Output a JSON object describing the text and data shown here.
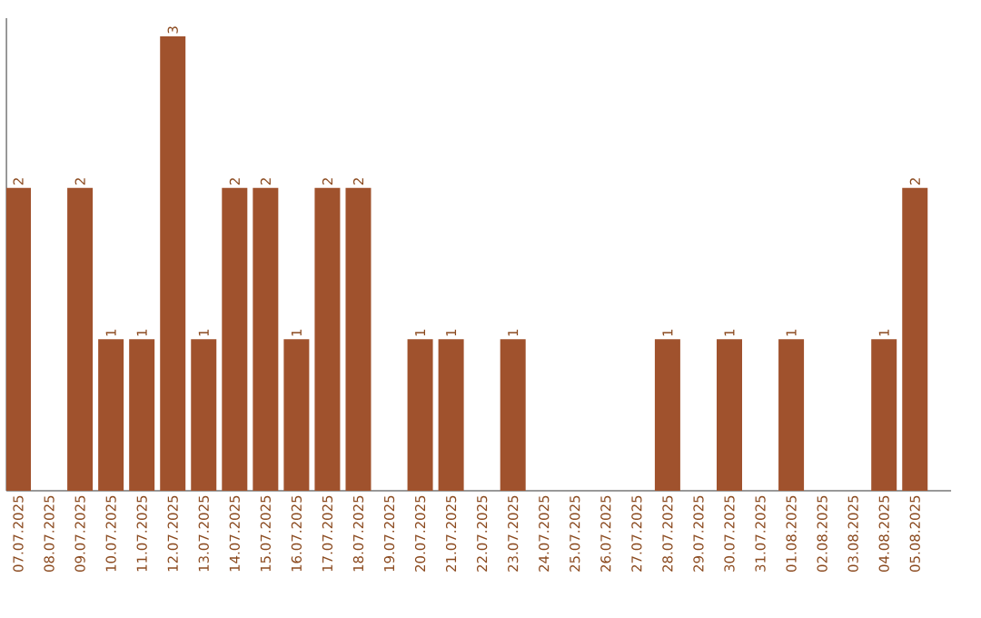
{
  "chart_data": {
    "type": "bar",
    "categories": [
      "07.07.2025",
      "08.07.2025",
      "09.07.2025",
      "10.07.2025",
      "11.07.2025",
      "12.07.2025",
      "13.07.2025",
      "14.07.2025",
      "15.07.2025",
      "16.07.2025",
      "17.07.2025",
      "18.07.2025",
      "19.07.2025",
      "20.07.2025",
      "21.07.2025",
      "22.07.2025",
      "23.07.2025",
      "24.07.2025",
      "25.07.2025",
      "26.07.2025",
      "27.07.2025",
      "28.07.2025",
      "29.07.2025",
      "30.07.2025",
      "31.07.2025",
      "01.08.2025",
      "02.08.2025",
      "03.08.2025",
      "04.08.2025",
      "05.08.2025"
    ],
    "values": [
      2,
      0,
      2,
      1,
      1,
      3,
      1,
      2,
      2,
      1,
      2,
      2,
      0,
      1,
      1,
      0,
      1,
      0,
      0,
      0,
      0,
      1,
      0,
      1,
      0,
      1,
      0,
      0,
      1,
      2
    ],
    "value_labels": [
      "2",
      null,
      "2",
      "1",
      "1",
      "3",
      "1",
      "2",
      "2",
      "1",
      "2",
      "2",
      null,
      "1",
      "1",
      null,
      "1",
      null,
      null,
      null,
      null,
      "1",
      null,
      "1",
      null,
      "1",
      null,
      null,
      "1",
      "2"
    ],
    "color": "#a0522d",
    "ylim": [
      0,
      3.12
    ],
    "tick_labels": "x"
  }
}
